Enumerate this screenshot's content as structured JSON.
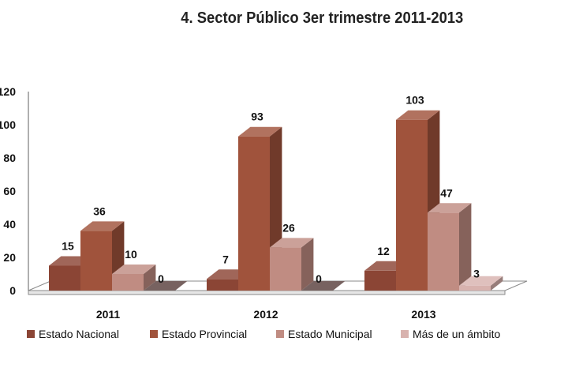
{
  "chart_data": {
    "type": "bar",
    "title": "4. Sector Público 3er trimestre 2011-2013",
    "categories": [
      "2011",
      "2012",
      "2013"
    ],
    "series": [
      {
        "name": "Estado Nacional",
        "values": [
          15,
          7,
          12
        ],
        "color": "#8B4535"
      },
      {
        "name": "Estado Provincial",
        "values": [
          36,
          93,
          103
        ],
        "color": "#A0533C"
      },
      {
        "name": "Estado Municipal",
        "values": [
          10,
          26,
          47
        ],
        "color": "#C08C82"
      },
      {
        "name": "Más de un ámbito",
        "values": [
          0,
          0,
          3
        ],
        "color": "#D8B2AE"
      }
    ],
    "ylim": [
      0,
      120
    ],
    "yticks": [
      "0",
      "20",
      "40",
      "60",
      "80",
      "100",
      "120"
    ],
    "data_labels": true,
    "grid": false,
    "legend_position": "bottom",
    "style": "3d"
  }
}
